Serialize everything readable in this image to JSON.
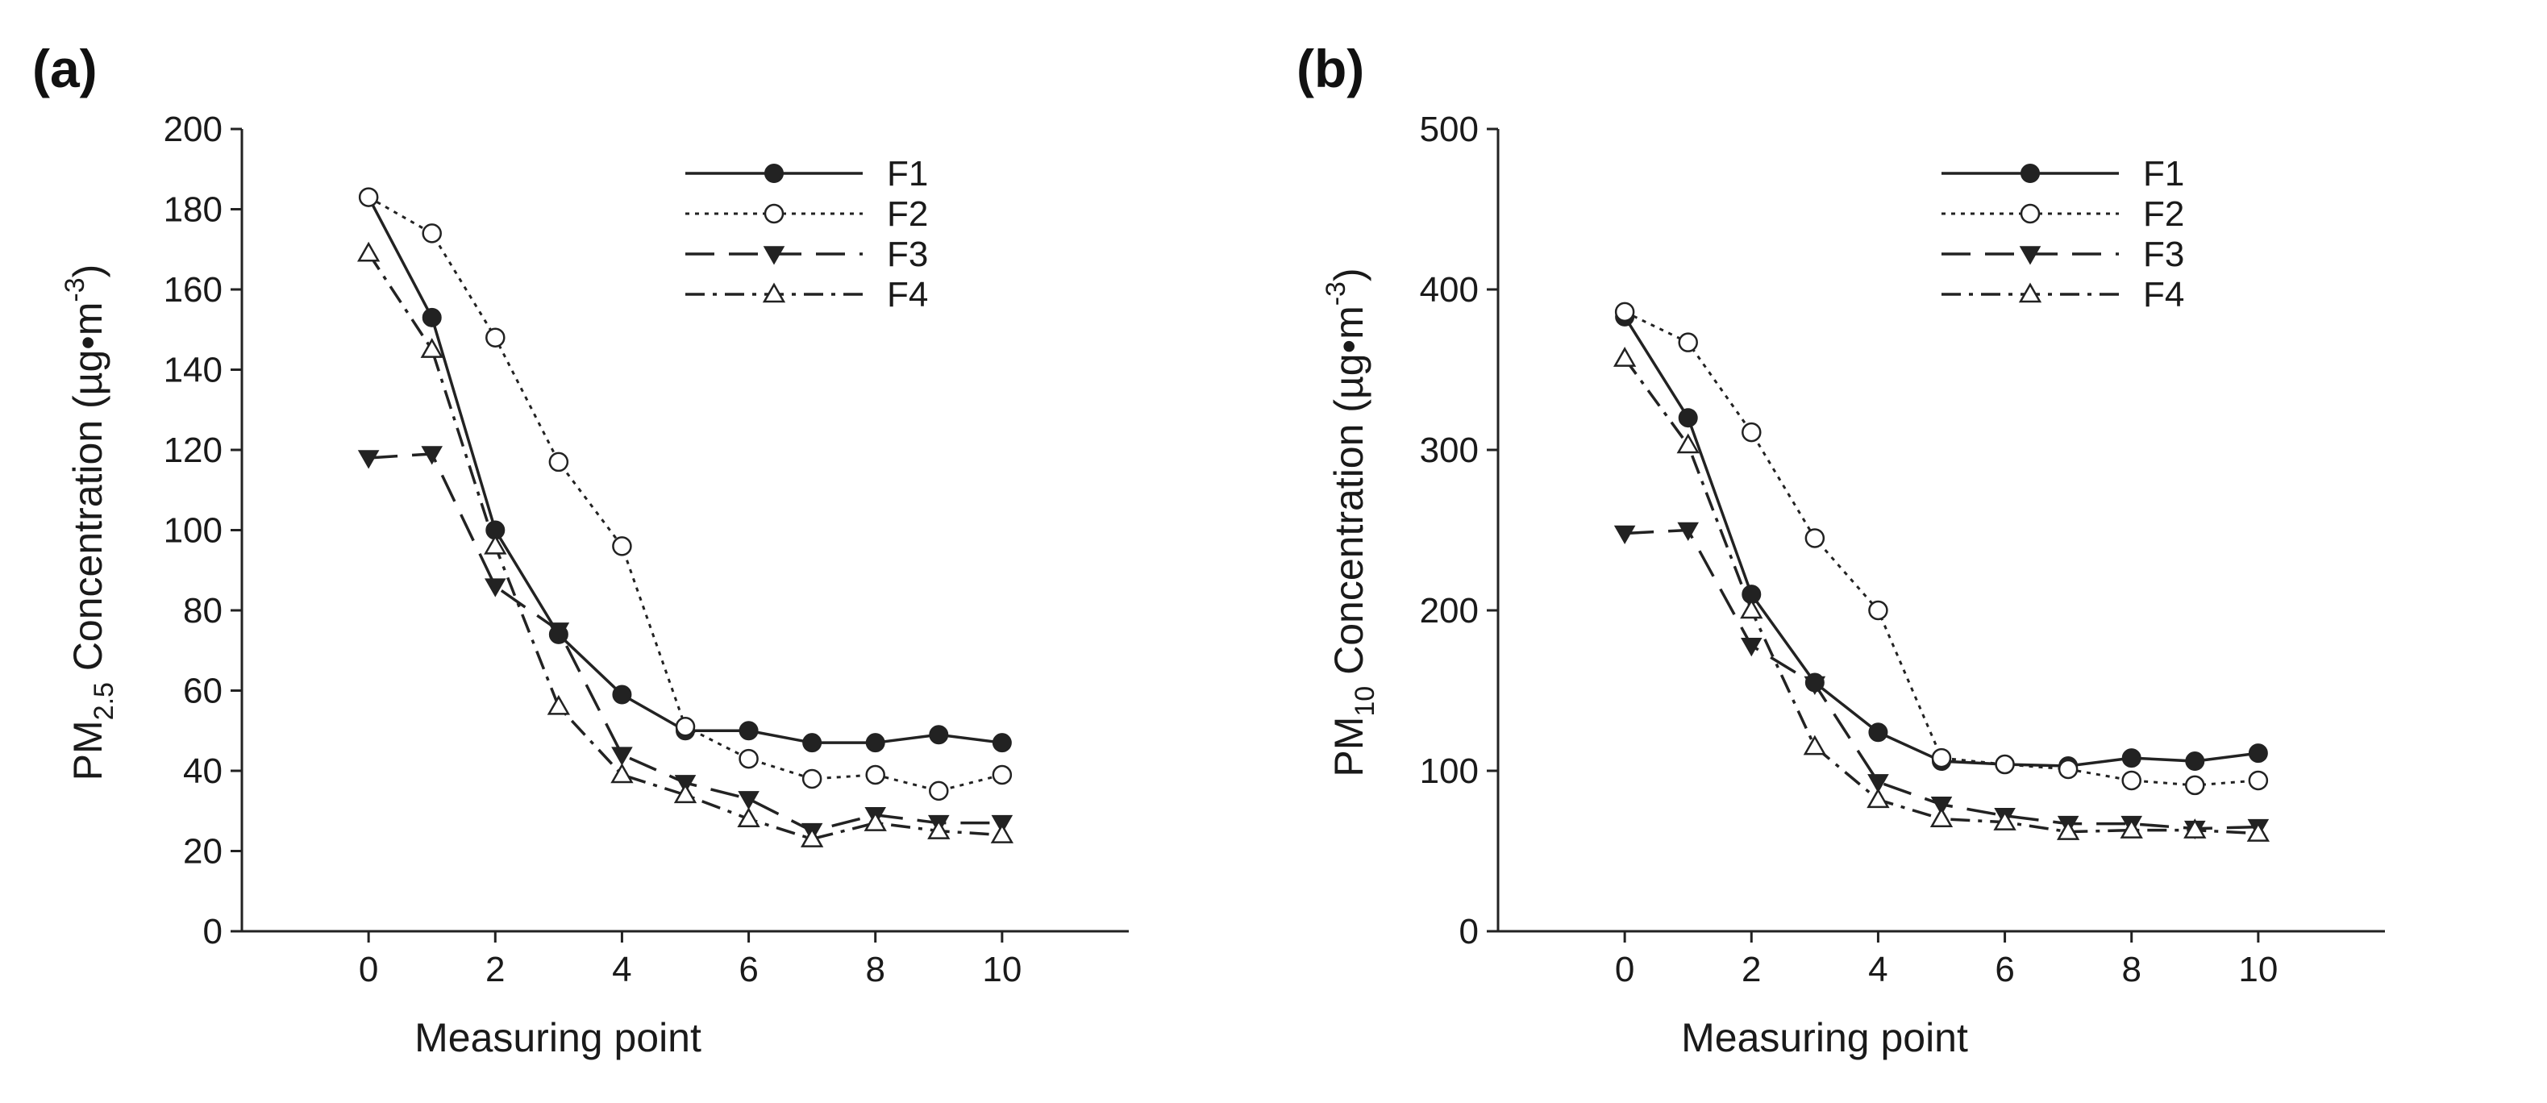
{
  "colors": {
    "ink": "#222222",
    "background": "#ffffff"
  },
  "chart_data": [
    {
      "panel_label": "(a)",
      "type": "line",
      "title": "",
      "ylabel_parts": {
        "main": "PM",
        "sub": "2.5",
        "rest": " Concentration (µg•m",
        "sup": "-3",
        "close": ")"
      },
      "xlabel": "Measuring point",
      "xlim": [
        -2,
        12
      ],
      "ylim": [
        0,
        200
      ],
      "xticks": [
        0,
        2,
        4,
        6,
        8,
        10
      ],
      "yticks": [
        0,
        20,
        40,
        60,
        80,
        100,
        120,
        140,
        160,
        180,
        200
      ],
      "legend_position": "top-right",
      "x": [
        0,
        1,
        2,
        3,
        4,
        5,
        6,
        7,
        8,
        9,
        10
      ],
      "series": [
        {
          "name": "F1",
          "style": "solid",
          "marker": "filled-circle",
          "values": [
            183,
            153,
            100,
            74,
            59,
            50,
            50,
            47,
            47,
            49,
            47
          ]
        },
        {
          "name": "F2",
          "style": "dotted",
          "marker": "open-circle",
          "values": [
            183,
            174,
            148,
            117,
            96,
            51,
            43,
            38,
            39,
            35,
            39
          ]
        },
        {
          "name": "F3",
          "style": "dashed",
          "marker": "filled-triangle-down",
          "values": [
            118,
            119,
            86,
            75,
            44,
            37,
            33,
            25,
            29,
            27,
            27
          ]
        },
        {
          "name": "F4",
          "style": "dashdot",
          "marker": "open-triangle-up",
          "values": [
            169,
            145,
            96,
            56,
            39,
            34,
            28,
            23,
            27,
            25,
            24
          ]
        }
      ]
    },
    {
      "panel_label": "(b)",
      "type": "line",
      "title": "",
      "ylabel_parts": {
        "main": "PM",
        "sub": "10",
        "rest": " Concentration (µg•m",
        "sup": "-3",
        "close": ")"
      },
      "xlabel": "Measuring point",
      "xlim": [
        -2,
        12
      ],
      "ylim": [
        0,
        500
      ],
      "xticks": [
        0,
        2,
        4,
        6,
        8,
        10
      ],
      "yticks": [
        0,
        100,
        200,
        300,
        400,
        500
      ],
      "legend_position": "top-right",
      "x": [
        0,
        1,
        2,
        3,
        4,
        5,
        6,
        7,
        8,
        9,
        10
      ],
      "series": [
        {
          "name": "F1",
          "style": "solid",
          "marker": "filled-circle",
          "values": [
            383,
            320,
            210,
            155,
            124,
            106,
            104,
            103,
            108,
            106,
            111
          ]
        },
        {
          "name": "F2",
          "style": "dotted",
          "marker": "open-circle",
          "values": [
            386,
            367,
            311,
            245,
            200,
            108,
            104,
            101,
            94,
            91,
            94
          ]
        },
        {
          "name": "F3",
          "style": "dashed",
          "marker": "filled-triangle-down",
          "values": [
            248,
            250,
            178,
            154,
            93,
            79,
            72,
            67,
            67,
            64,
            65
          ]
        },
        {
          "name": "F4",
          "style": "dashdot",
          "marker": "open-triangle-up",
          "values": [
            357,
            303,
            200,
            115,
            82,
            70,
            68,
            62,
            63,
            63,
            61
          ]
        }
      ]
    }
  ]
}
